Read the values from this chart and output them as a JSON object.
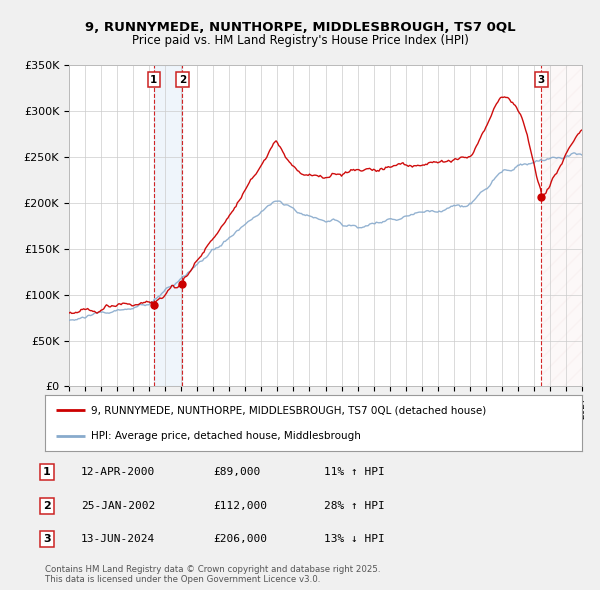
{
  "title_line1": "9, RUNNYMEDE, NUNTHORPE, MIDDLESBROUGH, TS7 0QL",
  "title_line2": "Price paid vs. HM Land Registry's House Price Index (HPI)",
  "red_label": "9, RUNNYMEDE, NUNTHORPE, MIDDLESBROUGH, TS7 0QL (detached house)",
  "blue_label": "HPI: Average price, detached house, Middlesbrough",
  "red_color": "#cc0000",
  "blue_color": "#88aacc",
  "background_color": "#f0f0f0",
  "plot_bg_color": "#ffffff",
  "grid_color": "#cccccc",
  "xmin": 1995,
  "xmax": 2027,
  "ymin": 0,
  "ymax": 350000,
  "yticks": [
    0,
    50000,
    100000,
    150000,
    200000,
    250000,
    300000,
    350000
  ],
  "ytick_labels": [
    "£0",
    "£50K",
    "£100K",
    "£150K",
    "£200K",
    "£250K",
    "£300K",
    "£350K"
  ],
  "sale_dates": [
    2000.29,
    2002.07,
    2024.46
  ],
  "sale_prices": [
    89000,
    112000,
    206000
  ],
  "sale_labels": [
    "1",
    "2",
    "3"
  ],
  "event_dates_str": [
    "12-APR-2000",
    "25-JAN-2002",
    "13-JUN-2024"
  ],
  "event_prices_str": [
    "£89,000",
    "£112,000",
    "£206,000"
  ],
  "event_pcts": [
    "11% ↑ HPI",
    "28% ↑ HPI",
    "13% ↓ HPI"
  ],
  "footnote": "Contains HM Land Registry data © Crown copyright and database right 2025.\nThis data is licensed under the Open Government Licence v3.0."
}
